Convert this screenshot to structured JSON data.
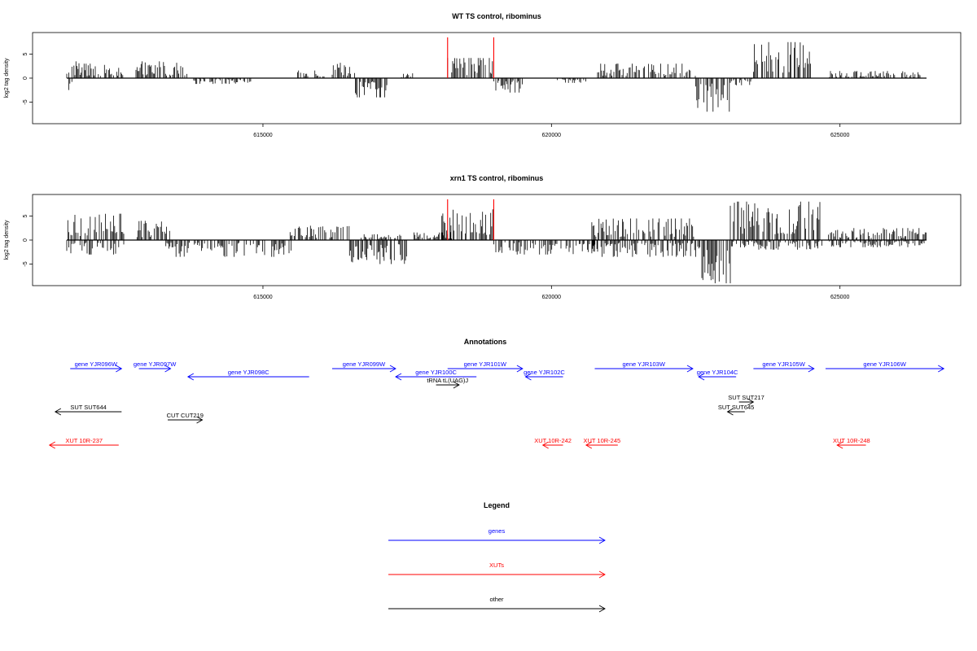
{
  "chart_data": [
    {
      "type": "bar",
      "title": "WT TS control, ribominus",
      "ylabel": "log2 tag density",
      "xlim": [
        611000,
        626800
      ],
      "ylim": [
        -9.5,
        9.5
      ],
      "xticks": [
        615000,
        620000,
        625000
      ],
      "yticks": [
        5,
        0,
        -5
      ],
      "data_range": [
        611600,
        626500
      ],
      "series": [
        {
          "color": "#000000",
          "density_profile": [
            {
              "from": 611600,
              "to": 611900,
              "strand": "+",
              "max": 3.5
            },
            {
              "from": 611600,
              "to": 611700,
              "strand": "-",
              "max": 2.5
            },
            {
              "from": 611900,
              "to": 612600,
              "strand": "+",
              "max": 3.0
            },
            {
              "from": 612800,
              "to": 613700,
              "strand": "+",
              "max": 3.5
            },
            {
              "from": 613800,
              "to": 614800,
              "strand": "-",
              "max": 1.2
            },
            {
              "from": 615600,
              "to": 616100,
              "strand": "+",
              "max": 1.6
            },
            {
              "from": 616200,
              "to": 616600,
              "strand": "+",
              "max": 3.2
            },
            {
              "from": 616600,
              "to": 617200,
              "strand": "-",
              "max": 4.0
            },
            {
              "from": 617400,
              "to": 617600,
              "strand": "+",
              "max": 1.0
            },
            {
              "from": 618200,
              "to": 619000,
              "strand": "+",
              "max": 4.2
            },
            {
              "from": 619000,
              "to": 619500,
              "strand": "-",
              "max": 3.0
            },
            {
              "from": 620100,
              "to": 620600,
              "strand": "-",
              "max": 1.0
            },
            {
              "from": 620800,
              "to": 622500,
              "strand": "+",
              "max": 3.0
            },
            {
              "from": 622500,
              "to": 623100,
              "strand": "-",
              "max": 7.0
            },
            {
              "from": 623100,
              "to": 623500,
              "strand": "-",
              "max": 1.5
            },
            {
              "from": 623500,
              "to": 624500,
              "strand": "+",
              "max": 7.5
            },
            {
              "from": 624800,
              "to": 626400,
              "strand": "+",
              "max": 1.5
            }
          ]
        },
        {
          "color": "#ff0000",
          "spikes": [
            {
              "x": 618200,
              "y": 8.5
            },
            {
              "x": 619000,
              "y": 8.5
            }
          ]
        }
      ]
    },
    {
      "type": "bar",
      "title": "xrn1 TS control, ribominus",
      "ylabel": "log2 tag density",
      "xlim": [
        611000,
        626800
      ],
      "ylim": [
        -9.5,
        9.5
      ],
      "xticks": [
        615000,
        620000,
        625000
      ],
      "yticks": [
        5,
        0,
        -5
      ],
      "data_range": [
        611600,
        626500
      ],
      "series": [
        {
          "color": "#000000",
          "density_profile": [
            {
              "from": 611600,
              "to": 612600,
              "strand": "+",
              "max": 5.5
            },
            {
              "from": 611600,
              "to": 612600,
              "strand": "-",
              "max": 3.0
            },
            {
              "from": 612800,
              "to": 613400,
              "strand": "+",
              "max": 4.0
            },
            {
              "from": 613300,
              "to": 615500,
              "strand": "-",
              "max": 3.5
            },
            {
              "from": 615400,
              "to": 616500,
              "strand": "+",
              "max": 3.0
            },
            {
              "from": 616500,
              "to": 617500,
              "strand": "-",
              "max": 5.0
            },
            {
              "from": 616700,
              "to": 617400,
              "strand": "+",
              "max": 1.2
            },
            {
              "from": 617600,
              "to": 618300,
              "strand": "+",
              "max": 2.0
            },
            {
              "from": 618100,
              "to": 619000,
              "strand": "+",
              "max": 6.5
            },
            {
              "from": 619000,
              "to": 620800,
              "strand": "-",
              "max": 3.0
            },
            {
              "from": 620700,
              "to": 622500,
              "strand": "+",
              "max": 4.5
            },
            {
              "from": 620700,
              "to": 622500,
              "strand": "-",
              "max": 3.5
            },
            {
              "from": 622500,
              "to": 623100,
              "strand": "-",
              "max": 9.0
            },
            {
              "from": 623100,
              "to": 624700,
              "strand": "+",
              "max": 8.0
            },
            {
              "from": 623100,
              "to": 624700,
              "strand": "-",
              "max": 2.0
            },
            {
              "from": 624800,
              "to": 626500,
              "strand": "+",
              "max": 2.5
            },
            {
              "from": 624800,
              "to": 626500,
              "strand": "-",
              "max": 1.5
            }
          ]
        },
        {
          "color": "#ff0000",
          "spikes": [
            {
              "x": 618200,
              "y": 8.5
            },
            {
              "x": 619000,
              "y": 8.5
            }
          ]
        }
      ]
    }
  ],
  "annotations": {
    "title": "Annotations",
    "items": [
      {
        "label": "gene YJR096W",
        "kind": "gene",
        "strand": "+",
        "start": 611660,
        "end": 612550
      },
      {
        "label": "gene YJR097W",
        "kind": "gene",
        "strand": "+",
        "start": 612850,
        "end": 613400
      },
      {
        "label": "gene YJR098C",
        "kind": "gene",
        "strand": "-",
        "start": 613700,
        "end": 615800
      },
      {
        "label": "gene YJR099W",
        "kind": "gene",
        "strand": "+",
        "start": 616200,
        "end": 617300
      },
      {
        "label": "gene YJR100C",
        "kind": "gene",
        "strand": "-",
        "start": 617300,
        "end": 618700
      },
      {
        "label": "tRNA tL(UAG)J",
        "kind": "other",
        "strand": "+",
        "start": 618000,
        "end": 618400
      },
      {
        "label": "gene YJR101W",
        "kind": "gene",
        "strand": "+",
        "start": 618200,
        "end": 619500
      },
      {
        "label": "gene YJR102C",
        "kind": "gene",
        "strand": "-",
        "start": 619550,
        "end": 620200
      },
      {
        "label": "gene YJR103W",
        "kind": "gene",
        "strand": "+",
        "start": 620750,
        "end": 622450
      },
      {
        "label": "gene YJR104C",
        "kind": "gene",
        "strand": "-",
        "start": 622550,
        "end": 623200
      },
      {
        "label": "gene YJR105W",
        "kind": "gene",
        "strand": "+",
        "start": 623500,
        "end": 624550
      },
      {
        "label": "gene YJR106W",
        "kind": "gene",
        "strand": "+",
        "start": 624750,
        "end": 626800
      },
      {
        "label": "SUT SUT644",
        "kind": "other",
        "strand": "-",
        "start": 611400,
        "end": 612550
      },
      {
        "label": "CUT CUT219",
        "kind": "other",
        "strand": "+",
        "start": 613350,
        "end": 613950
      },
      {
        "label": "SUT SUT217",
        "kind": "other",
        "strand": "+",
        "start": 623250,
        "end": 623500
      },
      {
        "label": "SUT SUT645",
        "kind": "other",
        "strand": "-",
        "start": 623050,
        "end": 623350
      },
      {
        "label": "XUT 10R-237",
        "kind": "xut",
        "strand": "-",
        "start": 611300,
        "end": 612500
      },
      {
        "label": "XUT 10R-242",
        "kind": "xut",
        "strand": "-",
        "start": 619850,
        "end": 620200
      },
      {
        "label": "XUT 10R-245",
        "kind": "xut",
        "strand": "-",
        "start": 620600,
        "end": 621150
      },
      {
        "label": "XUT 10R-248",
        "kind": "xut",
        "strand": "-",
        "start": 624950,
        "end": 625450
      }
    ]
  },
  "legend": {
    "title": "Legend",
    "items": [
      {
        "label": "genes",
        "color": "#0000ff"
      },
      {
        "label": "XUTs",
        "color": "#ff0000"
      },
      {
        "label": "other",
        "color": "#000000"
      }
    ]
  },
  "colors": {
    "gene": "#0000ff",
    "xut": "#ff0000",
    "other": "#000000"
  }
}
